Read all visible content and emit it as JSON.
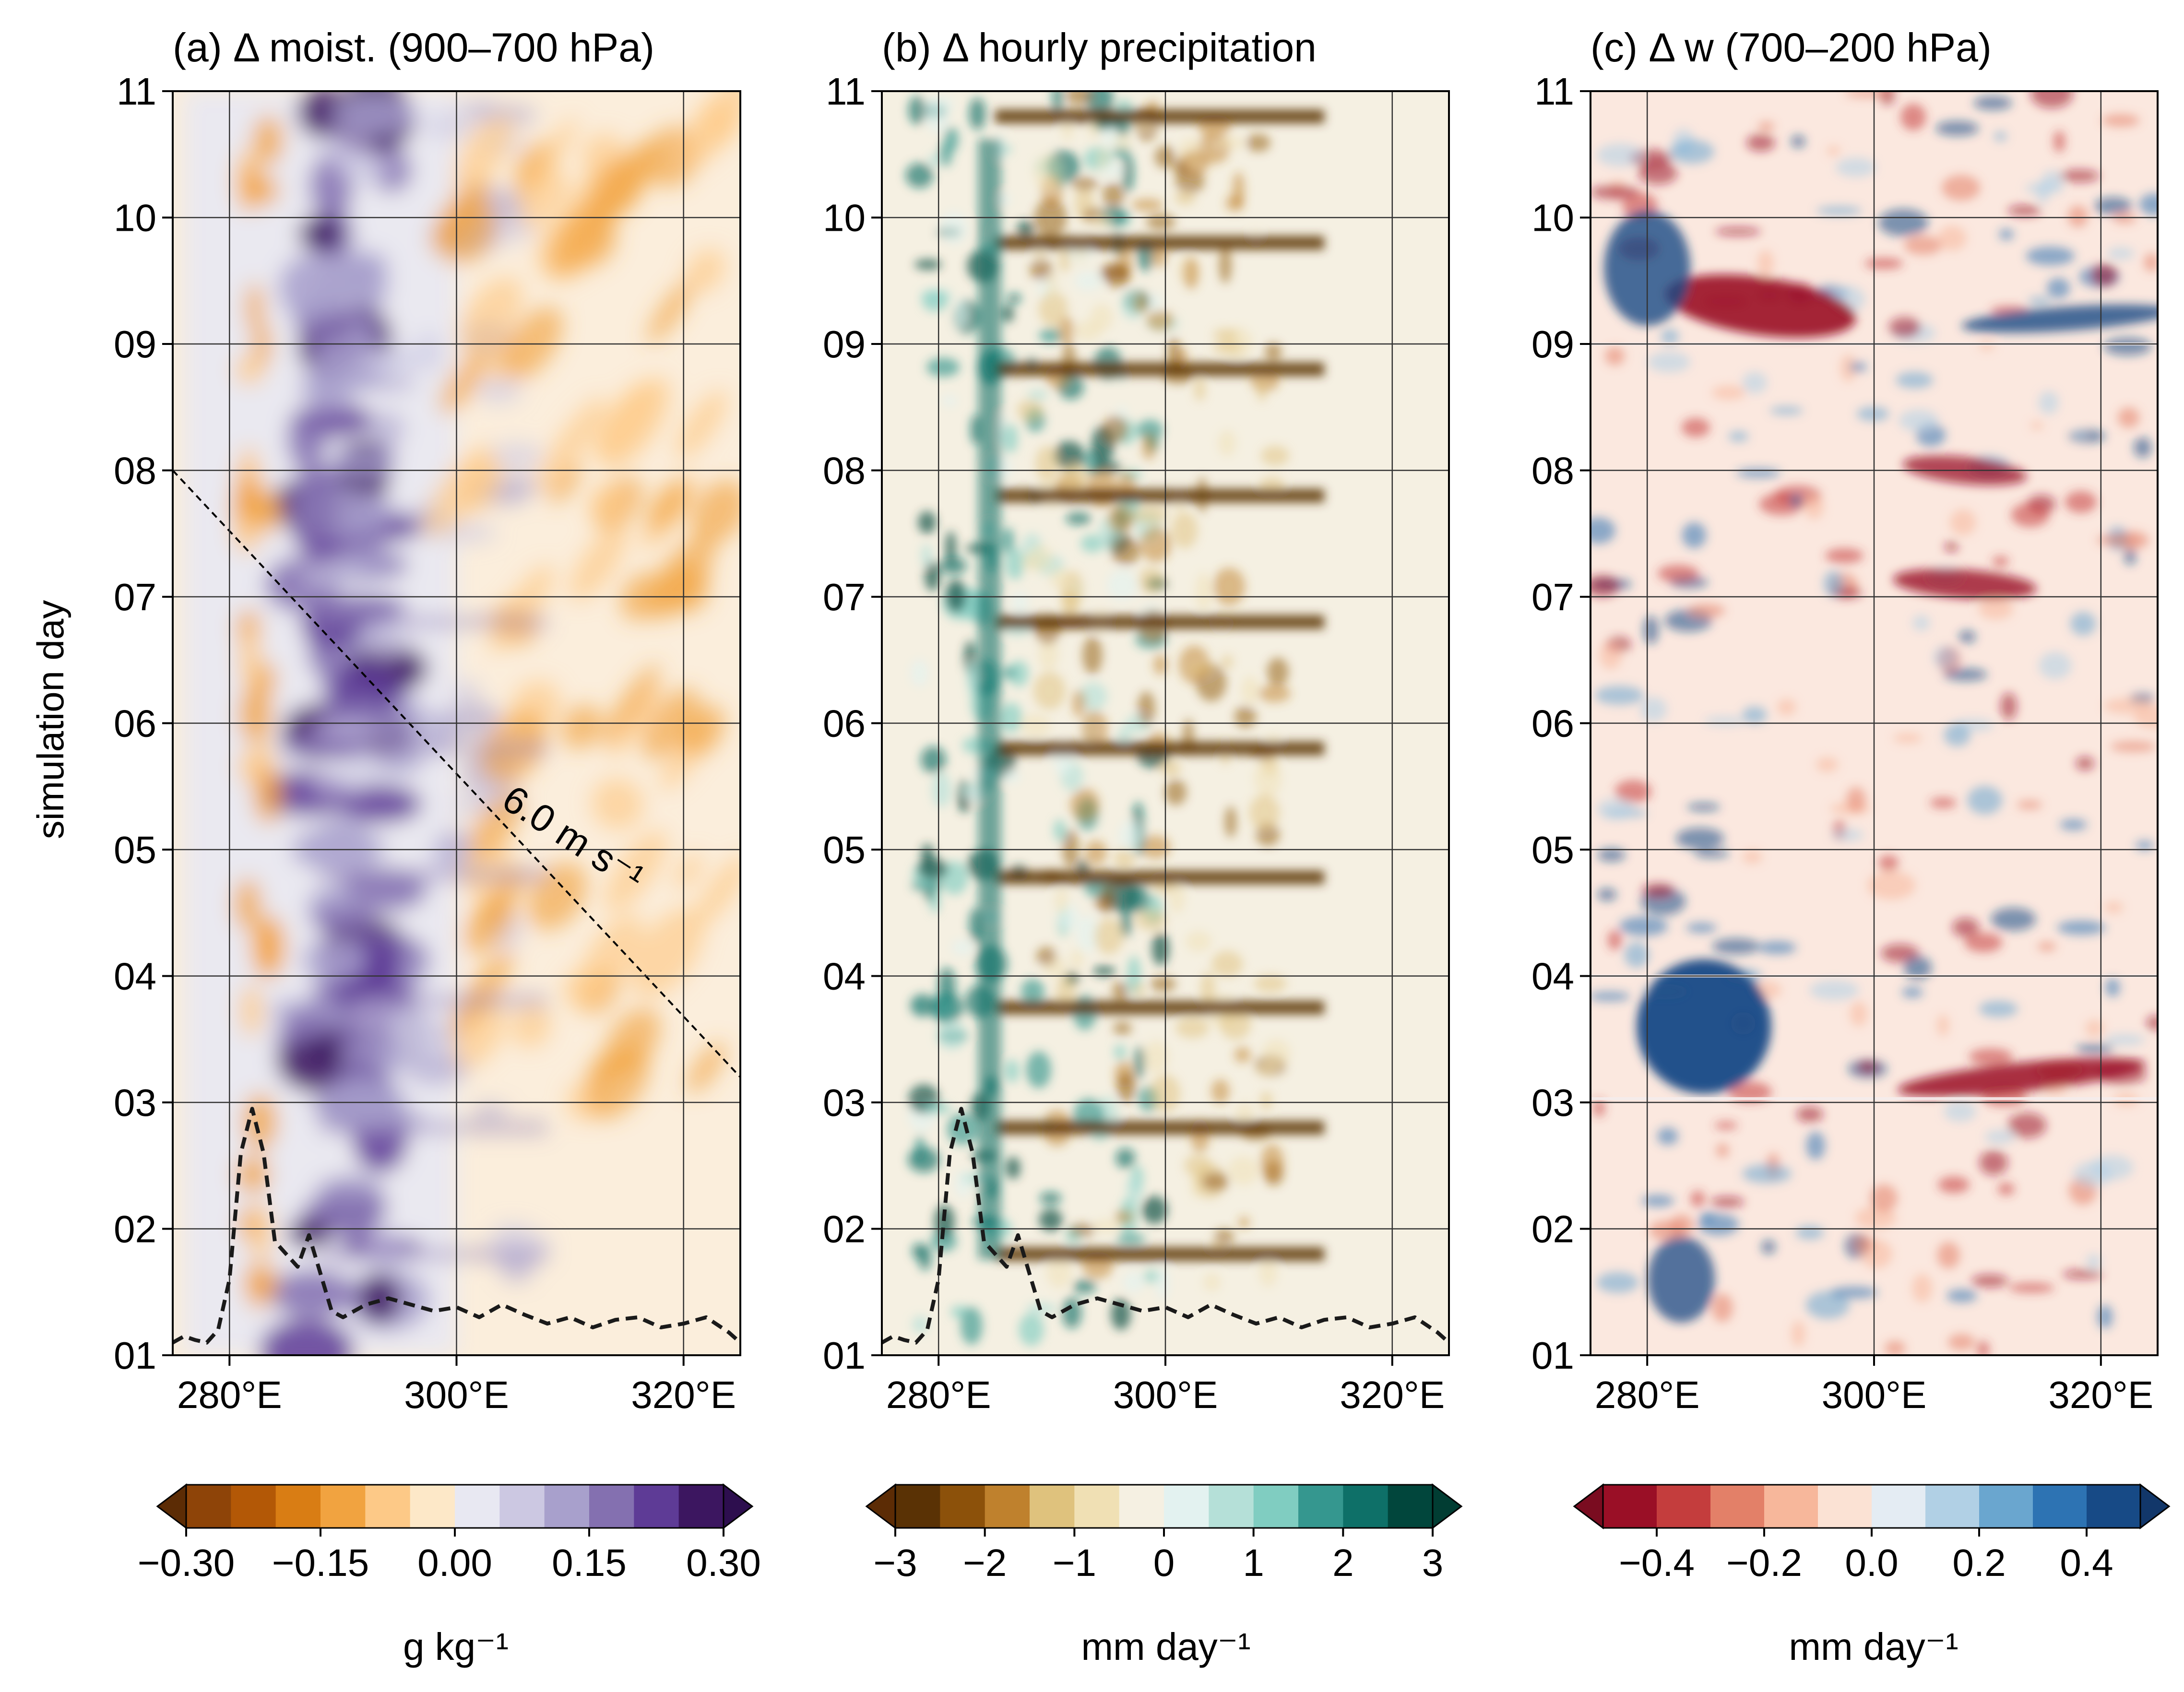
{
  "chart_data": [
    {
      "type": "heatmap",
      "title": "(a) Δ moist. (900–700 hPa)",
      "xlabel": "",
      "ylabel": "simulation day",
      "x_ticks": [
        "280°E",
        "300°E",
        "320°E"
      ],
      "x_tick_values": [
        280,
        300,
        320
      ],
      "xlim": [
        275,
        325
      ],
      "y_ticks": [
        "01",
        "02",
        "03",
        "04",
        "05",
        "06",
        "07",
        "08",
        "09",
        "10",
        "11"
      ],
      "ylim": [
        1,
        11
      ],
      "grid": true,
      "cmap": "PuOr",
      "annotation": {
        "text": "6.0 m s⁻¹",
        "line": [
          [
            275,
            8.0
          ],
          [
            325,
            3.2
          ]
        ]
      },
      "colorbar": {
        "ticks": [
          "−0.30",
          "−0.15",
          "0.00",
          "0.15",
          "0.30"
        ],
        "tick_values": [
          -0.3,
          -0.15,
          0.0,
          0.15,
          0.3
        ],
        "range": [
          -0.3,
          0.3
        ],
        "label": "g kg⁻¹",
        "colors": [
          "#8e4408",
          "#b35806",
          "#d97d14",
          "#f1a340",
          "#fdc987",
          "#fde8c8",
          "#e8e8f2",
          "#ccc8e2",
          "#a8a0cc",
          "#8470b0",
          "#5e3b96",
          "#3c1660"
        ]
      },
      "dashed_curve": {
        "x": [
          275,
          276,
          277,
          278,
          279,
          280,
          281,
          282,
          283,
          284,
          285,
          286,
          287,
          288,
          289,
          290,
          292,
          294,
          296,
          298,
          300,
          302,
          304,
          306,
          308,
          310,
          312,
          314,
          316,
          318,
          320,
          322,
          324,
          325
        ],
        "y": [
          1.1,
          1.15,
          1.12,
          1.1,
          1.2,
          1.6,
          2.6,
          2.95,
          2.6,
          1.9,
          1.8,
          1.7,
          1.95,
          1.65,
          1.35,
          1.3,
          1.4,
          1.45,
          1.4,
          1.35,
          1.38,
          1.3,
          1.4,
          1.32,
          1.25,
          1.3,
          1.22,
          1.28,
          1.3,
          1.22,
          1.25,
          1.3,
          1.18,
          1.1
        ]
      }
    },
    {
      "type": "heatmap",
      "title": "(b) Δ hourly precipitation",
      "xlabel": "",
      "ylabel": "",
      "x_ticks": [
        "280°E",
        "300°E",
        "320°E"
      ],
      "x_tick_values": [
        280,
        300,
        320
      ],
      "xlim": [
        275,
        325
      ],
      "y_ticks": [
        "01",
        "02",
        "03",
        "04",
        "05",
        "06",
        "07",
        "08",
        "09",
        "10",
        "11"
      ],
      "ylim": [
        1,
        11
      ],
      "grid": true,
      "cmap": "BrBG",
      "colorbar": {
        "ticks": [
          "−3",
          "−2",
          "−1",
          "0",
          "1",
          "2",
          "3"
        ],
        "tick_values": [
          -3,
          -2,
          -1,
          0,
          1,
          2,
          3
        ],
        "range": [
          -3,
          3
        ],
        "label": "mm day⁻¹",
        "colors": [
          "#5a3205",
          "#8c510a",
          "#bf812d",
          "#dfc27d",
          "#f0e0b4",
          "#f5f0e2",
          "#e3f2f0",
          "#b5e0d8",
          "#80cdc1",
          "#35978f",
          "#0e7068",
          "#01463c"
        ]
      },
      "dashed_curve": {
        "x": [
          275,
          276,
          277,
          278,
          279,
          280,
          281,
          282,
          283,
          284,
          285,
          286,
          287,
          288,
          289,
          290,
          292,
          294,
          296,
          298,
          300,
          302,
          304,
          306,
          308,
          310,
          312,
          314,
          316,
          318,
          320,
          322,
          324,
          325
        ],
        "y": [
          1.1,
          1.15,
          1.12,
          1.1,
          1.2,
          1.6,
          2.6,
          2.95,
          2.6,
          1.9,
          1.8,
          1.7,
          1.95,
          1.65,
          1.35,
          1.3,
          1.4,
          1.45,
          1.4,
          1.35,
          1.38,
          1.3,
          1.4,
          1.32,
          1.25,
          1.3,
          1.22,
          1.28,
          1.3,
          1.22,
          1.25,
          1.3,
          1.18,
          1.1
        ]
      }
    },
    {
      "type": "heatmap",
      "title": "(c) Δ w (700–200 hPa)",
      "xlabel": "",
      "ylabel": "",
      "x_ticks": [
        "280°E",
        "300°E",
        "320°E"
      ],
      "x_tick_values": [
        280,
        300,
        320
      ],
      "xlim": [
        275,
        325
      ],
      "y_ticks": [
        "01",
        "02",
        "03",
        "04",
        "05",
        "06",
        "07",
        "08",
        "09",
        "10",
        "11"
      ],
      "ylim": [
        1,
        11
      ],
      "grid": true,
      "cmap": "RdBu",
      "colorbar": {
        "ticks": [
          "−0.4",
          "−0.2",
          "0.0",
          "0.2",
          "0.4"
        ],
        "tick_values": [
          -0.4,
          -0.2,
          0.0,
          0.2,
          0.4
        ],
        "range": [
          -0.5,
          0.5
        ],
        "label": "mm day⁻¹",
        "colors": [
          "#9a0f26",
          "#c43d3d",
          "#e38068",
          "#f7b79b",
          "#fbe2d4",
          "#e4ecf3",
          "#b1d0e5",
          "#6aa6cf",
          "#2d73b3",
          "#174a86"
        ]
      }
    }
  ]
}
